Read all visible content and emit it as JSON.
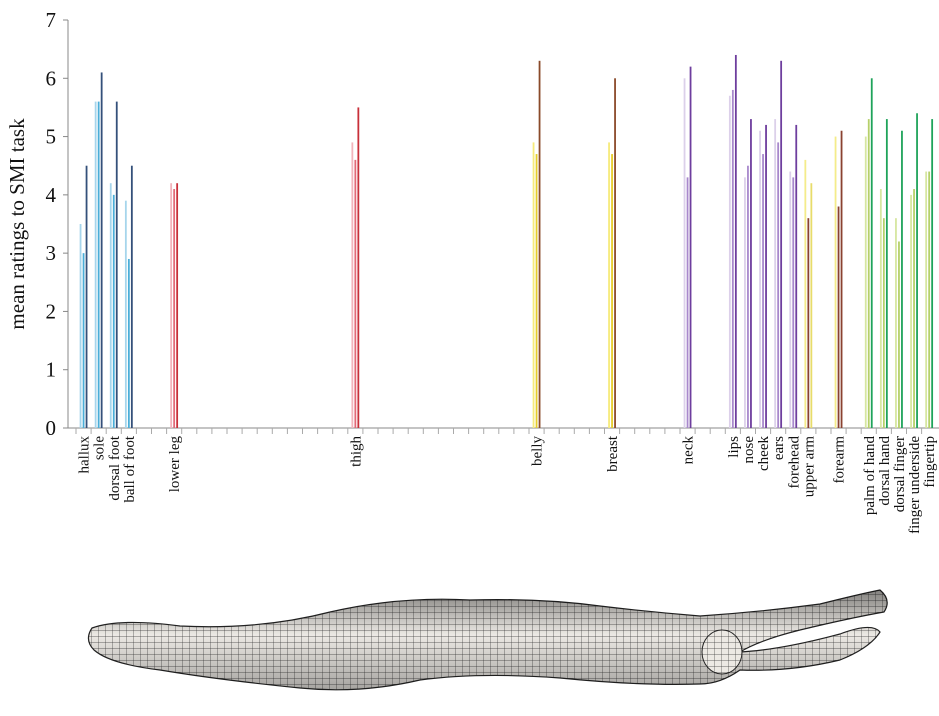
{
  "chart_data": {
    "type": "bar",
    "ylabel": "mean ratings to SMI task",
    "ylim": [
      0,
      7
    ],
    "yticks": [
      0,
      1,
      2,
      3,
      4,
      5,
      6,
      7
    ],
    "categories": [
      "hallux",
      "sole",
      "dorsal foot",
      "ball of foot",
      null,
      null,
      "lower leg",
      null,
      null,
      null,
      null,
      null,
      null,
      null,
      null,
      null,
      null,
      null,
      "thigh",
      null,
      null,
      null,
      null,
      null,
      null,
      null,
      null,
      null,
      null,
      null,
      "belly",
      null,
      null,
      null,
      null,
      "breast",
      null,
      null,
      null,
      null,
      "neck",
      null,
      null,
      "lips",
      "nose",
      "cheek",
      "ears",
      "forehead",
      "upper arm",
      null,
      "forearm",
      null,
      "palm of hand",
      "dorsal hand",
      "dorsal finger",
      "finger underside",
      "fingertip"
    ],
    "series": [
      {
        "values": [
          3.5,
          5.6,
          4.2,
          3.9,
          null,
          null,
          4.2,
          null,
          null,
          null,
          null,
          null,
          null,
          null,
          null,
          null,
          null,
          null,
          4.9,
          null,
          null,
          null,
          null,
          null,
          null,
          null,
          null,
          null,
          null,
          null,
          4.9,
          null,
          null,
          null,
          null,
          4.9,
          null,
          null,
          null,
          null,
          6.0,
          null,
          null,
          5.7,
          4.3,
          5.1,
          5.3,
          4.4,
          4.6,
          null,
          5.0,
          null,
          5.0,
          4.1,
          3.6,
          4.0,
          4.4
        ],
        "colors": [
          "#a6d5ec",
          "#a6d5ec",
          "#a6d5ec",
          "#a6d5ec",
          null,
          null,
          "#f2b4bc",
          null,
          null,
          null,
          null,
          null,
          null,
          null,
          null,
          null,
          null,
          null,
          "#f2b4bc",
          null,
          null,
          null,
          null,
          null,
          null,
          null,
          null,
          null,
          null,
          null,
          "#f6ea7a",
          null,
          null,
          null,
          null,
          "#f6ea7a",
          null,
          null,
          null,
          null,
          "#dcd0ea",
          null,
          null,
          "#dcd0ea",
          "#dcd0ea",
          "#dcd0ea",
          "#dcd0ea",
          "#dcd0ea",
          "#f4ec8a",
          null,
          "#f4ec8a",
          null,
          "#d6e6a0",
          "#d6e6a0",
          "#d6e6a0",
          "#d6e6a0",
          "#d6e6a0"
        ]
      },
      {
        "values": [
          3.0,
          5.6,
          4.0,
          2.9,
          null,
          null,
          4.1,
          null,
          null,
          null,
          null,
          null,
          null,
          null,
          null,
          null,
          null,
          null,
          4.6,
          null,
          null,
          null,
          null,
          null,
          null,
          null,
          null,
          null,
          null,
          null,
          4.7,
          null,
          null,
          null,
          null,
          4.7,
          null,
          null,
          null,
          null,
          4.3,
          null,
          null,
          5.8,
          4.5,
          4.7,
          4.9,
          4.3,
          3.6,
          null,
          3.8,
          null,
          5.3,
          3.6,
          3.2,
          4.1,
          4.4
        ],
        "colors": [
          "#4aaed8",
          "#4aaed8",
          "#4aaed8",
          "#4aaed8",
          null,
          null,
          "#e26a78",
          null,
          null,
          null,
          null,
          null,
          null,
          null,
          null,
          null,
          null,
          null,
          "#e26a78",
          null,
          null,
          null,
          null,
          null,
          null,
          null,
          null,
          null,
          null,
          null,
          "#e6cc2a",
          null,
          null,
          null,
          null,
          "#e6cc2a",
          null,
          null,
          null,
          null,
          "#a888cc",
          null,
          null,
          "#a888cc",
          "#a888cc",
          "#a888cc",
          "#a888cc",
          "#a888cc",
          "#8a4230",
          null,
          "#8a4230",
          null,
          "#b6d06a",
          "#b6d06a",
          "#b6d06a",
          "#b6d06a",
          "#b6d06a"
        ]
      },
      {
        "values": [
          4.5,
          6.1,
          5.6,
          4.5,
          null,
          null,
          4.2,
          null,
          null,
          null,
          null,
          null,
          null,
          null,
          null,
          null,
          null,
          null,
          5.5,
          null,
          null,
          null,
          null,
          null,
          null,
          null,
          null,
          null,
          null,
          null,
          6.3,
          null,
          null,
          null,
          null,
          6.0,
          null,
          null,
          null,
          null,
          6.2,
          null,
          null,
          6.4,
          5.3,
          5.2,
          6.3,
          5.2,
          4.2,
          null,
          5.1,
          null,
          6.0,
          5.3,
          5.1,
          5.4,
          5.3
        ],
        "colors": [
          "#34507a",
          "#34507a",
          "#34507a",
          "#34507a",
          null,
          null,
          "#c8303a",
          null,
          null,
          null,
          null,
          null,
          null,
          null,
          null,
          null,
          null,
          null,
          "#c8303a",
          null,
          null,
          null,
          null,
          null,
          null,
          null,
          null,
          null,
          null,
          null,
          "#8a4a2a",
          null,
          null,
          null,
          null,
          "#8a4a2a",
          null,
          null,
          null,
          null,
          "#6e3e9e",
          null,
          null,
          "#6e3e9e",
          "#6e3e9e",
          "#6e3e9e",
          "#6e3e9e",
          "#6e3e9e",
          "#e8dc6a",
          null,
          "#8a4230",
          null,
          "#1fa35a",
          "#1fa35a",
          "#1fa35a",
          "#1fa35a",
          "#1fa35a"
        ]
      }
    ]
  }
}
